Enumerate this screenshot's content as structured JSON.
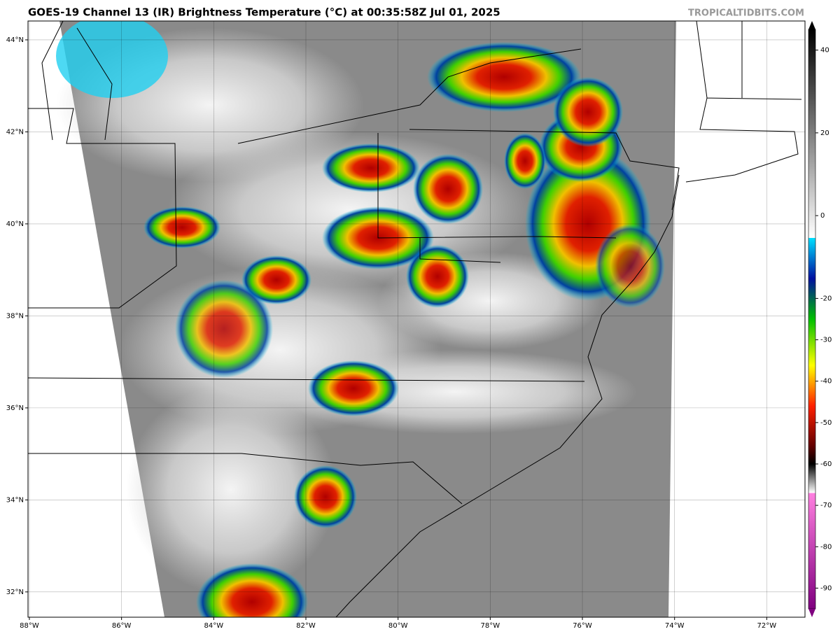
{
  "title": "GOES-19 Channel 13 (IR) Brightness Temperature (°C) at 00:35:58Z Jul 01, 2025",
  "credit": "TROPICALTIDBITS.COM",
  "map": {
    "xlim": [
      -88.03,
      -71.17
    ],
    "ylim": [
      31.45,
      44.41
    ],
    "xticks": [
      {
        "value": -88,
        "label": "88°W"
      },
      {
        "value": -86,
        "label": "86°W"
      },
      {
        "value": -84,
        "label": "84°W"
      },
      {
        "value": -82,
        "label": "82°W"
      },
      {
        "value": -80,
        "label": "80°W"
      },
      {
        "value": -78,
        "label": "78°W"
      },
      {
        "value": -76,
        "label": "76°W"
      },
      {
        "value": -74,
        "label": "74°W"
      },
      {
        "value": -72,
        "label": "72°W"
      }
    ],
    "yticks": [
      {
        "value": 44,
        "label": "44°N"
      },
      {
        "value": 42,
        "label": "42°N"
      },
      {
        "value": 40,
        "label": "40°N"
      },
      {
        "value": 38,
        "label": "38°N"
      },
      {
        "value": 36,
        "label": "36°N"
      },
      {
        "value": 34,
        "label": "34°N"
      },
      {
        "value": 32,
        "label": "32°N"
      }
    ]
  },
  "colorbar": {
    "lim": [
      45,
      -95
    ],
    "ticks": [
      40,
      20,
      0,
      -20,
      -30,
      -40,
      -50,
      -60,
      -70,
      -80,
      -90
    ]
  }
}
